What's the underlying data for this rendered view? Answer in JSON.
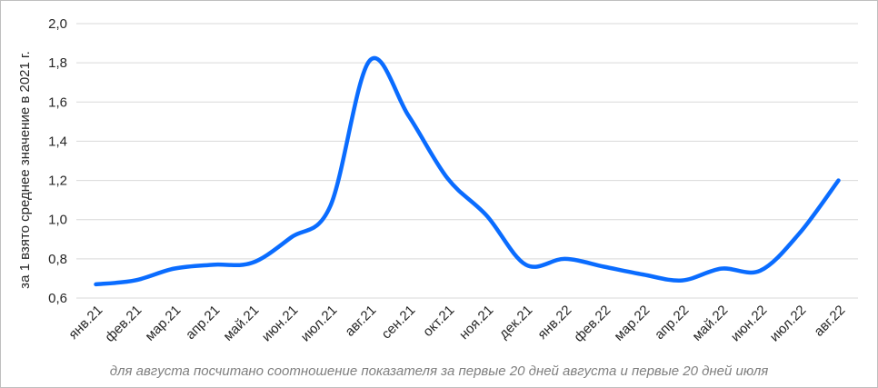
{
  "chart_data": {
    "type": "line",
    "title": "",
    "xlabel": "",
    "ylabel": "за 1 взято среднее значение в 2021 г.",
    "ylim": [
      0.6,
      2.0
    ],
    "ytick_step": 0.2,
    "yticks": [
      "0,6",
      "0,8",
      "1,0",
      "1,2",
      "1,4",
      "1,6",
      "1,8",
      "2,0"
    ],
    "grid": "horizontal",
    "legend": "none",
    "line_color": "#0a6cff",
    "categories": [
      "янв.21",
      "фев.21",
      "мар.21",
      "апр.21",
      "май.21",
      "июн.21",
      "июл.21",
      "авг.21",
      "сен.21",
      "окт.21",
      "ноя.21",
      "дек.21",
      "янв.22",
      "фев.22",
      "мар.22",
      "апр.22",
      "май.22",
      "июн.22",
      "июл.22",
      "авг.22"
    ],
    "values": [
      0.67,
      0.69,
      0.75,
      0.77,
      0.78,
      0.91,
      1.07,
      1.81,
      1.53,
      1.21,
      1.02,
      0.77,
      0.8,
      0.76,
      0.72,
      0.69,
      0.75,
      0.74,
      0.93,
      1.2
    ]
  },
  "footnote": "для августа посчитано соотношение показателя за первые 20 дней августа и первые 20 дней июля"
}
